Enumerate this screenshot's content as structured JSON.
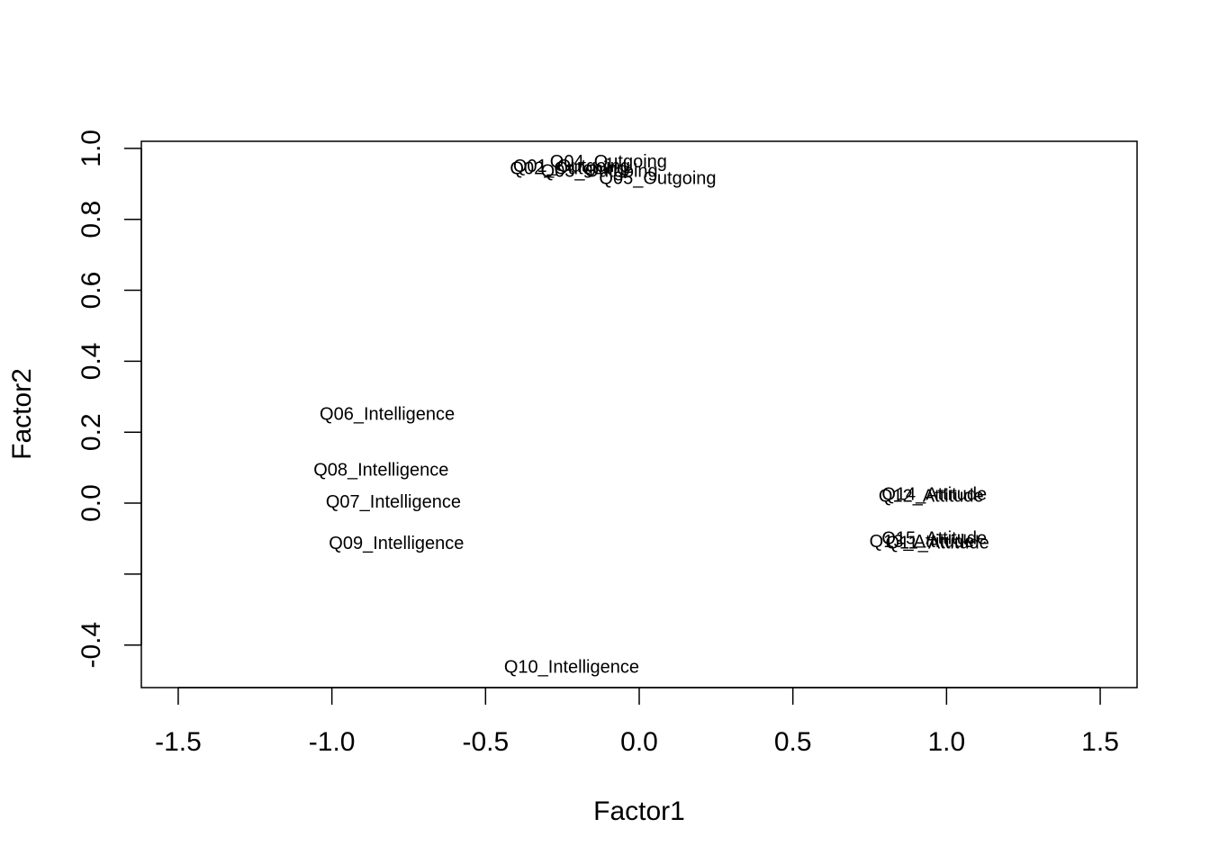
{
  "chart_data": {
    "type": "scatter",
    "title": "",
    "xlabel": "Factor1",
    "ylabel": "Factor2",
    "xlim": [
      -1.62,
      1.62
    ],
    "ylim": [
      -0.52,
      1.02
    ],
    "x_ticks": [
      -1.5,
      -1.0,
      -0.5,
      0.0,
      0.5,
      1.0,
      1.5
    ],
    "x_tick_labels": [
      "-1.5",
      "-1.0",
      "-0.5",
      "0.0",
      "0.5",
      "1.0",
      "1.5"
    ],
    "y_ticks": [
      -0.4,
      -0.2,
      0.0,
      0.2,
      0.4,
      0.6,
      0.8,
      1.0
    ],
    "y_tick_labels": [
      "-0.4",
      "",
      "0.0",
      "0.2",
      "0.4",
      "0.6",
      "0.8",
      "1.0"
    ],
    "grid": false,
    "legend": "none",
    "marker": "text",
    "points": [
      {
        "label": "Q01_Outgoing",
        "x": -0.22,
        "y": 0.952
      },
      {
        "label": "Q02_Outgoing",
        "x": -0.23,
        "y": 0.945
      },
      {
        "label": "Q03_Outgoing",
        "x": -0.13,
        "y": 0.938
      },
      {
        "label": "Q04_Outgoing",
        "x": -0.1,
        "y": 0.964
      },
      {
        "label": "Q05_Outgoing",
        "x": 0.06,
        "y": 0.917
      },
      {
        "label": "Q06_Intelligence",
        "x": -0.82,
        "y": 0.253
      },
      {
        "label": "Q07_Intelligence",
        "x": -0.8,
        "y": 0.005
      },
      {
        "label": "Q08_Intelligence",
        "x": -0.84,
        "y": 0.095
      },
      {
        "label": "Q09_Intelligence",
        "x": -0.79,
        "y": -0.112
      },
      {
        "label": "Q10_Intelligence",
        "x": -0.22,
        "y": -0.46
      },
      {
        "label": "Q11_Attitude",
        "x": 0.97,
        "y": -0.11
      },
      {
        "label": "Q12_Attitude",
        "x": 0.95,
        "y": 0.022
      },
      {
        "label": "Q13_Attitude",
        "x": 0.92,
        "y": -0.107
      },
      {
        "label": "Q14_Attitude",
        "x": 0.96,
        "y": 0.027
      },
      {
        "label": "Q15_Attitude",
        "x": 0.96,
        "y": -0.098
      }
    ]
  }
}
